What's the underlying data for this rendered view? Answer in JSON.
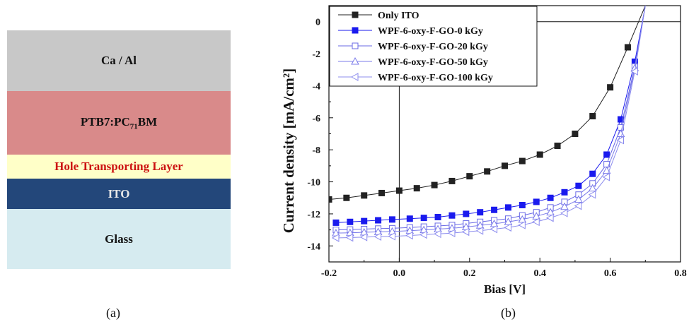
{
  "panel_a": {
    "caption": "(a)",
    "layers": [
      {
        "label": "Ca / Al",
        "color": "#c8c8c8",
        "text_color": "#111111"
      },
      {
        "label": "PTB7:PC71BM",
        "label_main": "PTB7:PC",
        "label_sub": "71",
        "label_tail": "BM",
        "color": "#d98a8a",
        "text_color": "#111111"
      },
      {
        "label": "Hole Transporting Layer",
        "color": "#ffffc8",
        "text_color": "#cc1111"
      },
      {
        "label": "ITO",
        "color": "#23477a",
        "text_color": "#e8e8e8"
      },
      {
        "label": "Glass",
        "color": "#d6ebf0",
        "text_color": "#111111"
      }
    ]
  },
  "panel_b": {
    "caption": "(b)"
  },
  "chart_data": {
    "type": "line",
    "xlabel": "Bias [V]",
    "ylabel": "Current density [mA/cm²]",
    "xlim": [
      -0.2,
      0.8
    ],
    "ylim": [
      -15,
      1
    ],
    "xticks": [
      -0.2,
      0.0,
      0.2,
      0.4,
      0.6,
      0.8
    ],
    "xtick_labels": [
      "-0.2",
      "0.0",
      "0.2",
      "0.4",
      "0.6",
      "0.8"
    ],
    "yticks": [
      0,
      -2,
      -4,
      -6,
      -8,
      -10,
      -12,
      -14
    ],
    "ytick_labels": [
      "0",
      "-2",
      "-4",
      "-6",
      "-8",
      "-10",
      "-12",
      "-14"
    ],
    "legend_position": "top-left",
    "series": [
      {
        "name": "Only ITO",
        "color": "#222222",
        "marker": "filled-square",
        "x": [
          -0.2,
          -0.15,
          -0.1,
          -0.05,
          0.0,
          0.05,
          0.1,
          0.15,
          0.2,
          0.25,
          0.3,
          0.35,
          0.4,
          0.45,
          0.5,
          0.55,
          0.6,
          0.65,
          0.7
        ],
        "y": [
          -11.1,
          -11.0,
          -10.85,
          -10.7,
          -10.55,
          -10.4,
          -10.2,
          -9.95,
          -9.65,
          -9.35,
          -9.0,
          -8.7,
          -8.3,
          -7.75,
          -7.0,
          -5.9,
          -4.1,
          -1.6,
          1.0
        ]
      },
      {
        "name": "WPF-6-oxy-F-GO-0 kGy",
        "color": "#1a1aee",
        "marker": "filled-square",
        "x": [
          -0.18,
          -0.14,
          -0.1,
          -0.06,
          -0.02,
          0.03,
          0.07,
          0.11,
          0.15,
          0.19,
          0.23,
          0.27,
          0.31,
          0.35,
          0.39,
          0.43,
          0.47,
          0.51,
          0.55,
          0.59,
          0.63,
          0.67,
          0.7
        ],
        "y": [
          -12.55,
          -12.5,
          -12.45,
          -12.4,
          -12.35,
          -12.3,
          -12.25,
          -12.2,
          -12.1,
          -12.0,
          -11.9,
          -11.75,
          -11.6,
          -11.45,
          -11.25,
          -11.0,
          -10.65,
          -10.25,
          -9.5,
          -8.3,
          -6.1,
          -2.5,
          1.0
        ]
      },
      {
        "name": "WPF-6-oxy-F-GO-20 kGy",
        "color": "#6a6ae6",
        "marker": "open-square",
        "x": [
          -0.18,
          -0.14,
          -0.1,
          -0.06,
          -0.02,
          0.03,
          0.07,
          0.11,
          0.15,
          0.19,
          0.23,
          0.27,
          0.31,
          0.35,
          0.39,
          0.43,
          0.47,
          0.51,
          0.55,
          0.59,
          0.63,
          0.67,
          0.7
        ],
        "y": [
          -13.0,
          -12.98,
          -12.95,
          -12.92,
          -12.9,
          -12.85,
          -12.8,
          -12.75,
          -12.7,
          -12.6,
          -12.5,
          -12.4,
          -12.3,
          -12.1,
          -11.9,
          -11.6,
          -11.25,
          -10.8,
          -10.1,
          -8.9,
          -6.6,
          -2.8,
          1.0
        ]
      },
      {
        "name": "WPF-6-oxy-F-GO-50 kGy",
        "color": "#7b7bea",
        "marker": "open-triangle-up",
        "x": [
          -0.18,
          -0.14,
          -0.1,
          -0.06,
          -0.02,
          0.03,
          0.07,
          0.11,
          0.15,
          0.19,
          0.23,
          0.27,
          0.31,
          0.35,
          0.39,
          0.43,
          0.47,
          0.51,
          0.55,
          0.59,
          0.63,
          0.67,
          0.7
        ],
        "y": [
          -13.2,
          -13.18,
          -13.15,
          -13.12,
          -13.1,
          -13.05,
          -13.0,
          -12.95,
          -12.9,
          -12.82,
          -12.72,
          -12.62,
          -12.5,
          -12.35,
          -12.15,
          -11.9,
          -11.55,
          -11.1,
          -10.4,
          -9.3,
          -7.0,
          -2.9,
          1.0
        ]
      },
      {
        "name": "WPF-6-oxy-F-GO-100 kGy",
        "color": "#8c8cee",
        "marker": "open-triangle-left",
        "x": [
          -0.18,
          -0.14,
          -0.1,
          -0.06,
          -0.02,
          0.03,
          0.07,
          0.11,
          0.15,
          0.19,
          0.23,
          0.27,
          0.31,
          0.35,
          0.39,
          0.43,
          0.47,
          0.51,
          0.55,
          0.59,
          0.63,
          0.67,
          0.7
        ],
        "y": [
          -13.5,
          -13.48,
          -13.45,
          -13.42,
          -13.4,
          -13.35,
          -13.3,
          -13.25,
          -13.2,
          -13.12,
          -13.05,
          -12.95,
          -12.85,
          -12.7,
          -12.5,
          -12.25,
          -11.95,
          -11.5,
          -10.8,
          -9.7,
          -7.4,
          -3.1,
          1.0
        ]
      }
    ]
  }
}
